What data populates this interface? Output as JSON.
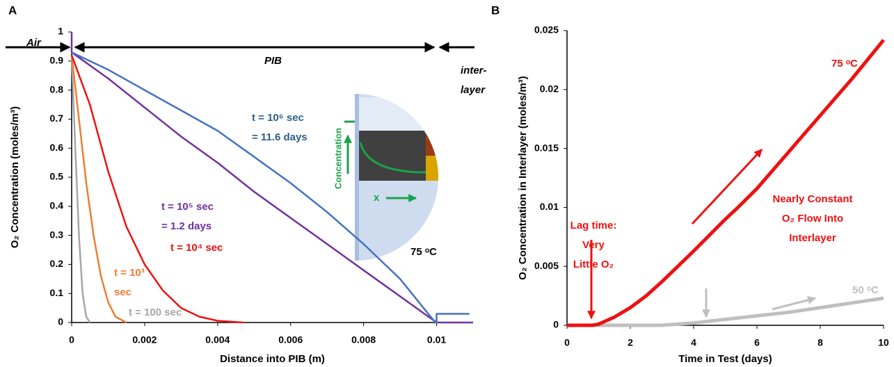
{
  "chart_data": [
    {
      "type": "line",
      "panel_label": "A",
      "xlabel": "Distance into PIB (m)",
      "ylabel": "O₂ Concentration (moles/m³)",
      "xlim": [
        0,
        0.011
      ],
      "ylim": [
        0,
        1
      ],
      "xticks": [
        0,
        0.002,
        0.004,
        0.006,
        0.008,
        0.01
      ],
      "yticks": [
        0,
        0.1,
        0.2,
        0.3,
        0.4,
        0.5,
        0.6,
        0.7,
        0.8,
        0.9,
        1
      ],
      "grid": false,
      "series": [
        {
          "color": "#a6a6a6",
          "x": [
            0,
            0.0001,
            0.0002,
            0.0003,
            0.0004,
            0.0005
          ],
          "values": [
            0.92,
            0.6,
            0.3,
            0.1,
            0.02,
            0
          ]
        },
        {
          "color": "#ed7d31",
          "x": [
            0,
            0.0002,
            0.0004,
            0.0006,
            0.0008,
            0.001,
            0.0012,
            0.0015
          ],
          "values": [
            0.92,
            0.7,
            0.48,
            0.3,
            0.16,
            0.07,
            0.02,
            0
          ]
        },
        {
          "color": "#ee1111",
          "x": [
            0,
            0.0005,
            0.001,
            0.0015,
            0.002,
            0.0025,
            0.003,
            0.0035,
            0.004,
            0.0047
          ],
          "values": [
            0.92,
            0.75,
            0.52,
            0.33,
            0.2,
            0.11,
            0.05,
            0.02,
            0.006,
            0
          ]
        },
        {
          "color": "#7030a0",
          "x": [
            0,
            0,
            0.001,
            0.002,
            0.003,
            0.004,
            0.005,
            0.006,
            0.007,
            0.008,
            0.009,
            0.01,
            0.011
          ],
          "values": [
            1,
            0.93,
            0.84,
            0.74,
            0.64,
            0.55,
            0.45,
            0.36,
            0.27,
            0.18,
            0.09,
            0,
            0
          ]
        },
        {
          "color": "#4472c4",
          "x": [
            0,
            0.001,
            0.002,
            0.003,
            0.004,
            0.005,
            0.006,
            0.007,
            0.008,
            0.009,
            0.0099,
            0.01,
            0.01,
            0.0109
          ],
          "values": [
            0.93,
            0.87,
            0.8,
            0.73,
            0.66,
            0.57,
            0.48,
            0.38,
            0.27,
            0.15,
            0.01,
            0,
            0.03,
            0.03
          ]
        }
      ],
      "annotations": [
        {
          "lines": [
            "Air"
          ],
          "color": "#000000",
          "italic": true
        },
        {
          "lines": [
            "PIB"
          ],
          "color": "#000000",
          "italic": true
        },
        {
          "lines": [
            "inter-",
            "layer"
          ],
          "color": "#000000",
          "italic": true
        },
        {
          "lines": [
            "t = 10⁶  sec",
            "= 11.6 days"
          ],
          "color": "#2e5f8a"
        },
        {
          "lines": [
            "t = 10⁵  sec",
            "= 1.2 days"
          ],
          "color": "#7030a0"
        },
        {
          "lines": [
            "t = 10⁴  sec"
          ],
          "color": "#ee1111"
        },
        {
          "lines": [
            "t = 10³",
            "sec"
          ],
          "color": "#ed7d31"
        },
        {
          "lines": [
            "t = 100  sec"
          ],
          "color": "#a6a6a6"
        },
        {
          "lines": [
            "75 ᵒC"
          ],
          "color": "#000000"
        },
        {
          "lines": [
            "Concentration"
          ],
          "color": "#1aa34a",
          "rotate": true
        },
        {
          "lines": [
            "x"
          ],
          "color": "#1aa34a"
        }
      ]
    },
    {
      "type": "line",
      "panel_label": "B",
      "xlabel": "Time in Test (days)",
      "ylabel": "O₂  Concentration in Interlayer (moles/m³)",
      "xlim": [
        0,
        10
      ],
      "ylim": [
        0,
        0.025
      ],
      "xticks": [
        0,
        2,
        4,
        6,
        8,
        10
      ],
      "yticks": [
        0,
        0.005,
        0.01,
        0.015,
        0.02,
        0.025
      ],
      "grid": false,
      "series": [
        {
          "color": "#bfbfbf",
          "x": [
            0,
            3,
            4,
            5,
            6,
            7,
            8,
            9,
            10
          ],
          "values": [
            0,
            0,
            0.0002,
            0.0005,
            0.0008,
            0.0011,
            0.0015,
            0.0019,
            0.0023
          ]
        },
        {
          "color": "#ee1111",
          "x": [
            0,
            0.8,
            1,
            1.5,
            2,
            2.5,
            3,
            3.5,
            4,
            5,
            5.4,
            6,
            7,
            8,
            9,
            10
          ],
          "values": [
            0,
            0,
            0.0001,
            0.0007,
            0.0015,
            0.0025,
            0.0037,
            0.005,
            0.0063,
            0.009,
            0.01,
            0.0116,
            0.0147,
            0.0178,
            0.0209,
            0.0242
          ]
        }
      ],
      "annotations": [
        {
          "lines": [
            "Lag time:",
            "Very",
            "Little O₂"
          ],
          "color": "#ee1111"
        },
        {
          "lines": [
            "75 ᵒC"
          ],
          "color": "#ee1111"
        },
        {
          "lines": [
            "Nearly Constant",
            "O₂ Flow Into",
            "Interlayer"
          ],
          "color": "#ee1111"
        },
        {
          "lines": [
            "50 ᵒC"
          ],
          "color": "#bfbfbf"
        }
      ]
    }
  ]
}
